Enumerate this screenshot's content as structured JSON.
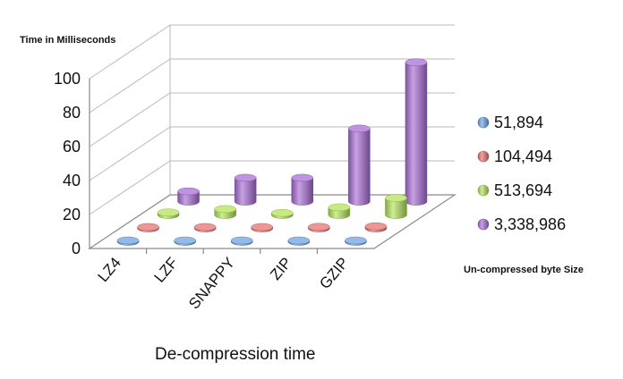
{
  "chart_data": {
    "type": "bar",
    "title": "",
    "ylabel": "Time in Milliseconds",
    "xlabel": "De-compression time",
    "legend_title": "Un-compressed byte Size",
    "legend_position": "right",
    "ylim": [
      0,
      100
    ],
    "yticks": [
      "0",
      "20",
      "40",
      "60",
      "80",
      "100"
    ],
    "grid": true,
    "style": "3d-cylinder",
    "categories": [
      "LZ4",
      "LZF",
      "SNAPPY",
      "ZIP",
      "GZIP"
    ],
    "series": [
      {
        "name": "51,894",
        "values": [
          0.3,
          0.4,
          0.3,
          0.4,
          0.6
        ],
        "color": "#6fa3e0"
      },
      {
        "name": "104,494",
        "values": [
          0.5,
          0.8,
          0.6,
          0.9,
          1.2
        ],
        "color": "#e57373"
      },
      {
        "name": "513,694",
        "values": [
          1.5,
          3.5,
          1.2,
          4.5,
          10
        ],
        "color": "#b5e35a"
      },
      {
        "name": "3,338,986",
        "values": [
          6,
          14,
          14,
          43,
          82
        ],
        "color": "#a96fd4"
      }
    ]
  }
}
